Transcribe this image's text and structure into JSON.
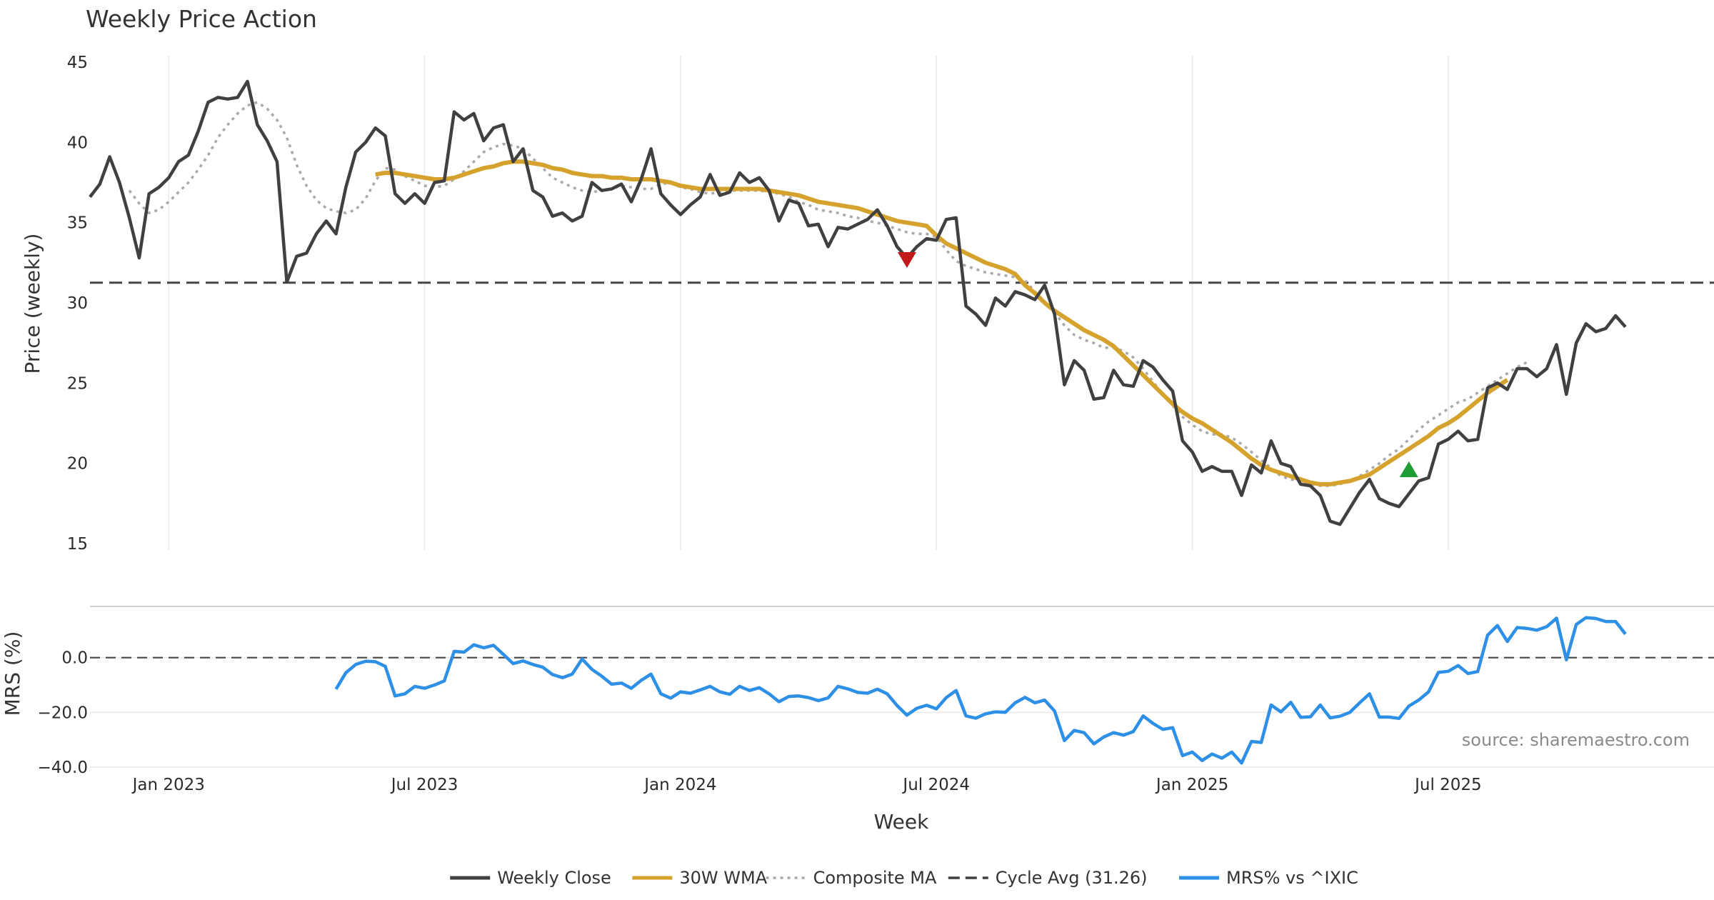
{
  "chart_data": {
    "type": "line",
    "title": "Weekly Price Action",
    "xlabel": "Week",
    "source": "source: sharemaestro.com",
    "x_ticks": [
      "Jan 2023",
      "Jul 2023",
      "Jan 2024",
      "Jul 2024",
      "Jan 2025",
      "Jul 2025"
    ],
    "x_tick_weeks": [
      4,
      30,
      56,
      82,
      108,
      134
    ],
    "x_range": [
      -4,
      161
    ],
    "price_panel": {
      "ylabel": "Price (weekly)",
      "ylim": [
        14.6,
        45.4
      ],
      "y_ticks": [
        "15",
        "20",
        "25",
        "30",
        "35",
        "40",
        "45"
      ],
      "y_tick_values": [
        15,
        20,
        25,
        30,
        35,
        40,
        45
      ],
      "series": [
        {
          "name": "Weekly Close",
          "color": "#404040",
          "start_week": -4,
          "values": [
            36.6,
            37.4,
            39.1,
            37.5,
            35.3,
            32.8,
            36.8,
            37.2,
            37.8,
            38.8,
            39.2,
            40.7,
            42.5,
            42.8,
            42.7,
            42.8,
            43.8,
            41.1,
            40.1,
            38.8,
            31.3,
            32.9,
            33.1,
            34.3,
            35.1,
            34.3,
            37.2,
            39.4,
            40,
            40.9,
            40.4,
            36.8,
            36.2,
            36.8,
            36.2,
            37.5,
            37.6,
            41.9,
            41.4,
            41.8,
            40.1,
            40.9,
            41.1,
            38.8,
            39.6,
            37,
            36.6,
            35.4,
            35.6,
            35.1,
            35.4,
            37.5,
            37,
            37.1,
            37.4,
            36.3,
            37.7,
            39.6,
            36.8,
            36.1,
            35.5,
            36.1,
            36.6,
            38,
            36.7,
            36.9,
            38.1,
            37.5,
            37.8,
            37,
            35.1,
            36.4,
            36.2,
            34.8,
            34.9,
            33.5,
            34.7,
            34.6,
            34.9,
            35.2,
            35.8,
            34.8,
            33.5,
            32.8,
            33.5,
            34,
            33.9,
            35.2,
            35.3,
            29.8,
            29.3,
            28.6,
            30.3,
            29.8,
            30.7,
            30.5,
            30.2,
            31.1,
            29.3,
            24.9,
            26.4,
            25.8,
            24,
            24.1,
            25.8,
            24.9,
            24.8,
            26.4,
            26,
            25.2,
            24.5,
            21.4,
            20.7,
            19.5,
            19.8,
            19.5,
            19.5,
            18,
            19.9,
            19.4,
            21.4,
            20,
            19.8,
            18.7,
            18.6,
            18,
            16.4,
            16.2,
            17.2,
            18.2,
            19,
            17.8,
            17.5,
            17.3,
            18.1,
            18.9,
            19.1,
            21.2,
            21.5,
            22,
            21.4,
            21.5,
            24.7,
            25,
            24.6,
            25.9,
            25.9,
            25.4,
            25.9,
            27.4,
            24.3,
            27.5,
            28.7,
            28.2,
            28.4,
            29.2,
            28.5
          ]
        },
        {
          "name": "30W WMA",
          "color": "#d6a22e",
          "start_week": 25,
          "values": [
            38,
            38.1,
            38.1,
            38,
            37.9,
            37.8,
            37.7,
            37.7,
            37.8,
            38,
            38.2,
            38.4,
            38.5,
            38.7,
            38.8,
            38.8,
            38.7,
            38.6,
            38.4,
            38.3,
            38.1,
            38,
            37.9,
            37.9,
            37.8,
            37.8,
            37.7,
            37.7,
            37.7,
            37.6,
            37.5,
            37.3,
            37.2,
            37.1,
            37.1,
            37.1,
            37.1,
            37.1,
            37.1,
            37.1,
            37,
            36.9,
            36.8,
            36.7,
            36.5,
            36.3,
            36.2,
            36.1,
            36,
            35.9,
            35.7,
            35.5,
            35.3,
            35.1,
            35,
            34.9,
            34.8,
            34.2,
            33.7,
            33.4,
            33.1,
            32.8,
            32.5,
            32.3,
            32.1,
            31.8,
            31.1,
            30.6,
            30,
            29.5,
            29.1,
            28.7,
            28.3,
            28,
            27.7,
            27.3,
            26.7,
            26.1,
            25.5,
            24.9,
            24.3,
            23.7,
            23.2,
            22.8,
            22.5,
            22.1,
            21.7,
            21.3,
            20.8,
            20.3,
            19.9,
            19.6,
            19.4,
            19.2,
            19,
            18.8,
            18.7,
            18.7,
            18.8,
            18.9,
            19.1,
            19.3,
            19.7,
            20.1,
            20.5,
            20.9,
            21.3,
            21.7,
            22.2,
            22.5,
            22.9,
            23.4,
            23.9,
            24.4,
            24.8,
            25.2
          ]
        },
        {
          "name": "Composite MA",
          "color": "#aaaaaa",
          "start_week": 0,
          "values": [
            37,
            36.2,
            35.6,
            35.8,
            36.3,
            36.9,
            37.5,
            38.3,
            39.2,
            40.3,
            41.1,
            41.8,
            42.3,
            42.5,
            42.1,
            41.4,
            40.3,
            38.6,
            37.3,
            36.4,
            35.9,
            35.7,
            35.6,
            35.8,
            36.5,
            37.6,
            38.4,
            38.3,
            37.9,
            37.6,
            37.3,
            37.2,
            37.3,
            37.7,
            38.2,
            38.8,
            39.4,
            39.7,
            39.9,
            39.8,
            39.6,
            39,
            38.4,
            37.8,
            37.5,
            37.2,
            37,
            36.9,
            37,
            37.1,
            37.3,
            37.2,
            37.1,
            37.1,
            37.4,
            37.5,
            37.2,
            37.1,
            36.9,
            36.8,
            36.9,
            37,
            37,
            37,
            37,
            36.9,
            36.8,
            36.6,
            36.3,
            36.1,
            35.8,
            35.7,
            35.6,
            35.4,
            35.3,
            35.1,
            35,
            34.8,
            34.6,
            34.4,
            34.3,
            34.3,
            34.1,
            33.3,
            32.6,
            32.3,
            32.1,
            31.9,
            31.8,
            31.7,
            31.6,
            31.4,
            30.7,
            30.1,
            29.4,
            28.6,
            28,
            27.7,
            27.5,
            27.2,
            27.2,
            27,
            26.6,
            25.9,
            25.1,
            24.3,
            23.6,
            22.9,
            22.4,
            22,
            21.8,
            21.8,
            21.6,
            21.2,
            20.7,
            20.2,
            19.7,
            19.2,
            19,
            18.9,
            18.7,
            18.6,
            18.6,
            18.7,
            18.9,
            19.2,
            19.6,
            20,
            20.5,
            20.9,
            21.5,
            22.1,
            22.6,
            23,
            23.4,
            23.8,
            24,
            24.4,
            24.8,
            25.2,
            25.6,
            26,
            26.3
          ]
        }
      ],
      "reference_line": {
        "name": "Cycle Avg (31.26)",
        "value": 31.26
      },
      "markers": [
        {
          "type": "sell",
          "week": 79,
          "value": 32.7,
          "color": "#c21a1a"
        },
        {
          "type": "buy",
          "week": 130,
          "value": 19.6,
          "color": "#1e9e32"
        }
      ]
    },
    "mrs_panel": {
      "ylabel": "MRS (%)",
      "ylim": [
        -40,
        18.7
      ],
      "y_ticks": [
        "0.0",
        "−20.0",
        "−40.0"
      ],
      "y_tick_values": [
        0,
        -20,
        -40
      ],
      "zero_line": 0,
      "series": [
        {
          "name": "MRS% vs ^IXIC",
          "color": "#2e8fe6",
          "start_week": 21,
          "values": [
            -11.5,
            -5.5,
            -2.5,
            -1.3,
            -1.5,
            -3.2,
            -14,
            -13.2,
            -10.5,
            -11.2,
            -10,
            -8.5,
            2.3,
            2,
            4.7,
            3.6,
            4.5,
            1.2,
            -2.2,
            -1.2,
            -2.5,
            -3.5,
            -6.2,
            -7.3,
            -6,
            -0.5,
            -4.3,
            -6.8,
            -9.7,
            -9.3,
            -11.2,
            -8.3,
            -6,
            -13.2,
            -14.8,
            -12.5,
            -13,
            -11.8,
            -10.5,
            -12.5,
            -13.4,
            -10.5,
            -12,
            -11,
            -13.2,
            -16.1,
            -14.2,
            -14,
            -14.6,
            -15.7,
            -14.7,
            -10.5,
            -11.4,
            -12.7,
            -13,
            -11.5,
            -13.2,
            -17.5,
            -21,
            -18.5,
            -17.4,
            -18.7,
            -14.6,
            -12,
            -21.3,
            -22.1,
            -20.5,
            -19.8,
            -20,
            -16.5,
            -14.5,
            -16.5,
            -15.5,
            -19.5,
            -30.3,
            -26.6,
            -27.4,
            -31.5,
            -29,
            -27.4,
            -28.3,
            -27,
            -21.3,
            -24,
            -26.2,
            -25.6,
            -35.8,
            -34.5,
            -37.6,
            -35.2,
            -36.7,
            -34.5,
            -38.5,
            -30.6,
            -31,
            -17.3,
            -19.8,
            -16.3,
            -21.8,
            -21.6,
            -17.3,
            -22,
            -21.4,
            -20,
            -16.5,
            -13.2,
            -21.7,
            -21.7,
            -22.2,
            -17.7,
            -15.5,
            -12.5,
            -5.4,
            -5,
            -2.9,
            -5.8,
            -5.1,
            8.2,
            11.7,
            5.9,
            11,
            10.7,
            10,
            11.3,
            14.4,
            -0.8,
            12.1,
            14.6,
            14.3,
            13.2,
            13.2,
            8.6
          ]
        }
      ]
    },
    "legend": {
      "position": "bottom-center",
      "items": [
        {
          "label": "Weekly Close",
          "color": "#404040",
          "style": "solid"
        },
        {
          "label": "30W WMA",
          "color": "#d6a22e",
          "style": "solid"
        },
        {
          "label": "Composite MA",
          "color": "#aaaaaa",
          "style": "dotted"
        },
        {
          "label": "Cycle Avg (31.26)",
          "color": "#404040",
          "style": "dashed"
        },
        {
          "label": "MRS% vs ^IXIC",
          "color": "#2e8fe6",
          "style": "solid"
        }
      ]
    }
  }
}
